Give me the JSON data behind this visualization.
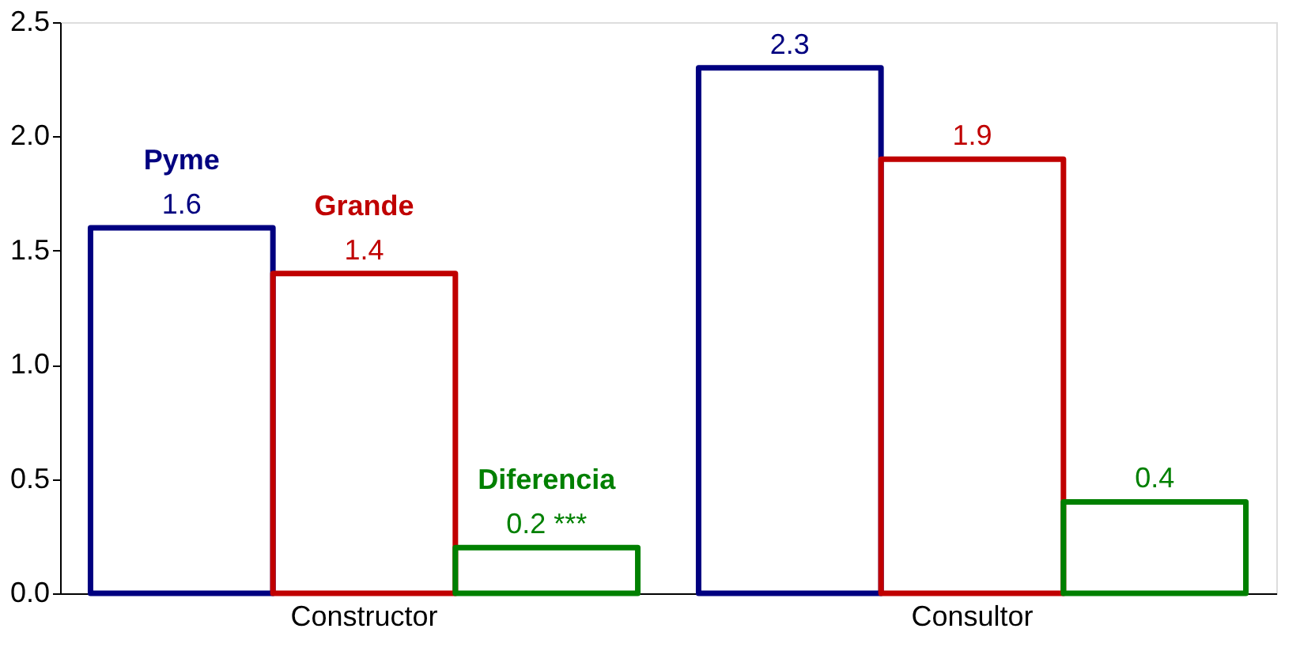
{
  "chart_data": {
    "type": "bar",
    "categories": [
      "Constructor",
      "Consultor"
    ],
    "series": [
      {
        "name": "Pyme",
        "color": "#000080",
        "values": [
          1.6,
          2.3
        ],
        "value_labels": [
          "1.6",
          "2.3"
        ]
      },
      {
        "name": "Grande",
        "color": "#c00000",
        "values": [
          1.4,
          1.9
        ],
        "value_labels": [
          "1.4",
          "1.9"
        ]
      },
      {
        "name": "Diferencia",
        "color": "#008000",
        "values": [
          0.2,
          0.4
        ],
        "value_labels": [
          "0.2 ***",
          "0.4"
        ]
      }
    ],
    "ylim": [
      0,
      2.5
    ],
    "yticks": [
      {
        "value": 0,
        "label": "0.0"
      },
      {
        "value": 0.5,
        "label": "0.5"
      },
      {
        "value": 1,
        "label": "1.0"
      },
      {
        "value": 1.5,
        "label": "1.5"
      },
      {
        "value": 2,
        "label": "2.0"
      },
      {
        "value": 2.5,
        "label": "2.5"
      }
    ],
    "grid": false,
    "legend": false
  }
}
